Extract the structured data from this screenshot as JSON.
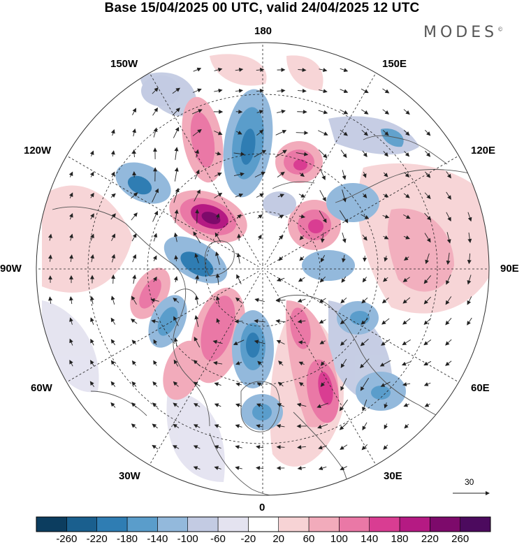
{
  "title": "Base 15/04/2025 00 UTC, valid 24/04/2025 12 UTC",
  "brand": {
    "name": "MODES",
    "mark": "©"
  },
  "longitude_labels": [
    "180",
    "150E",
    "120E",
    "90E",
    "60E",
    "30E",
    "0",
    "30W",
    "60W",
    "90W",
    "120W",
    "150W"
  ],
  "reference_vector": {
    "value": "30"
  },
  "colorbar": {
    "ticks": [
      "-260",
      "-220",
      "-180",
      "-140",
      "-100",
      "-60",
      "-20",
      "20",
      "60",
      "100",
      "140",
      "180",
      "220",
      "260"
    ],
    "colors": [
      "#0c3d5f",
      "#1a5f8e",
      "#2f7db3",
      "#5a9dcb",
      "#93b9dc",
      "#c3cbe3",
      "#e4e3f0",
      "#ffffff",
      "#f7d3d5",
      "#f2abbb",
      "#ea78a6",
      "#d93d92",
      "#b51a83",
      "#7d0a6b",
      "#4c0a5e"
    ]
  },
  "field_features": [
    {
      "lat": 68,
      "lon": -150,
      "value": 220
    },
    {
      "lat": 60,
      "lon": 175,
      "value": -140
    },
    {
      "lat": 55,
      "lon": 150,
      "value": 180
    },
    {
      "lat": 62,
      "lon": 125,
      "value": 160
    },
    {
      "lat": 62,
      "lon": -100,
      "value": -140
    },
    {
      "lat": 58,
      "lon": -45,
      "value": 140
    },
    {
      "lat": 62,
      "lon": -10,
      "value": -180
    },
    {
      "lat": 55,
      "lon": 35,
      "value": 160
    },
    {
      "lat": 45,
      "lon": 30,
      "value": 160
    },
    {
      "lat": 58,
      "lon": -125,
      "value": 100
    },
    {
      "lat": 50,
      "lon": -150,
      "value": -60
    }
  ]
}
